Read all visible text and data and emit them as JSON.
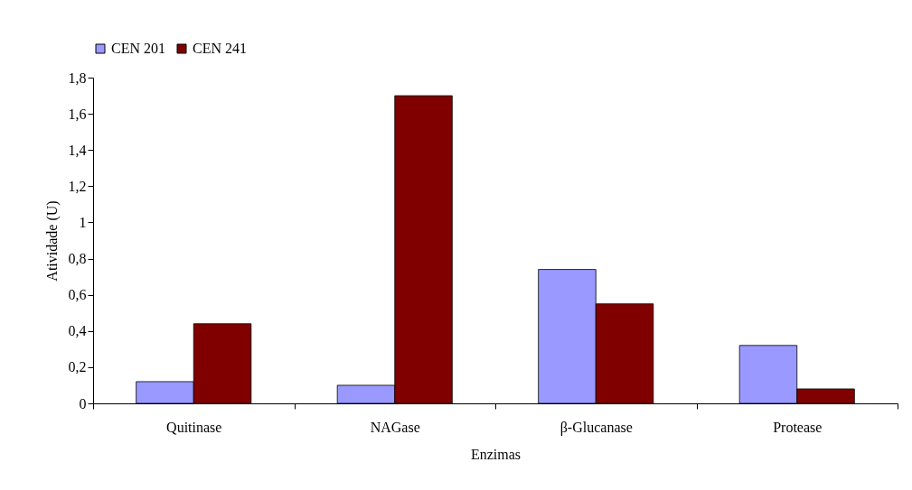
{
  "chart_data": {
    "type": "bar",
    "xlabel": "Enzimas",
    "ylabel": "Atividade (U)",
    "categories": [
      "Quitinase",
      "NAGase",
      "β-Glucanase",
      "Protease"
    ],
    "series": [
      {
        "name": "CEN 201",
        "color": "#9999ff",
        "values": [
          0.12,
          0.1,
          0.74,
          0.32
        ]
      },
      {
        "name": "CEN 241",
        "color": "#800000",
        "values": [
          0.44,
          1.7,
          0.55,
          0.08
        ]
      }
    ],
    "ylim": [
      0,
      1.8
    ],
    "yticks": [
      0,
      {
        "value": 0.2,
        "label": "0,2"
      },
      {
        "value": 0.4,
        "label": "0,4"
      },
      {
        "value": 0.6,
        "label": "0,6"
      },
      {
        "value": 0.8,
        "label": "0,8"
      },
      1,
      {
        "value": 1.2,
        "label": "1,2"
      },
      {
        "value": 1.4,
        "label": "1,4"
      },
      {
        "value": 1.6,
        "label": "1,6"
      },
      {
        "value": 1.8,
        "label": "1,8"
      }
    ],
    "legend": "top",
    "grid": false
  }
}
